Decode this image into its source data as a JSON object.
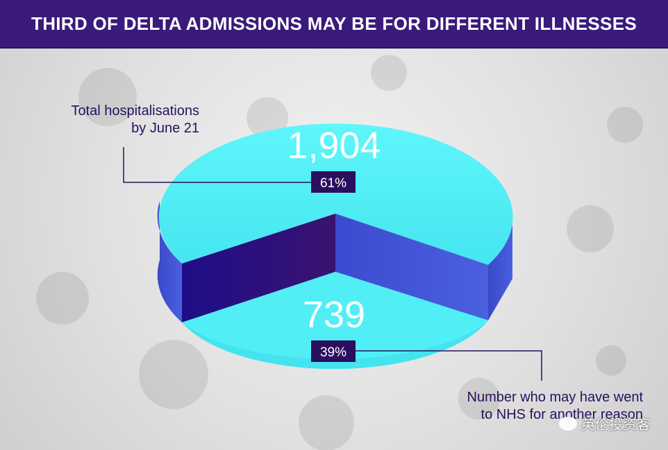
{
  "header": {
    "title": "THIRD OF DELTA ADMISSIONS MAY BE FOR DIFFERENT ILLNESSES"
  },
  "colors": {
    "header_bg": "#3a1a7a",
    "slice_top": "#52f0f7",
    "slice_side_light": "#4255d6",
    "slice_side_dark": "#2a0f7a",
    "badge_bg": "#2a0f5e",
    "label_text": "#2a0f5e"
  },
  "labels": {
    "total_line1": "Total hospitalisations",
    "total_line2": "by June 21",
    "other_line1": "Number who may have went",
    "other_line2": "to NHS for another reason"
  },
  "watermark": {
    "text": "英伦投资客"
  },
  "chart_data": {
    "type": "pie",
    "title": "THIRD OF DELTA ADMISSIONS MAY BE FOR DIFFERENT ILLNESSES",
    "slices": [
      {
        "label": "Total hospitalisations by June 21",
        "value": 1904,
        "value_label": "1,904",
        "percent_label": "61%",
        "percent": 61
      },
      {
        "label": "Number who may have went to NHS for another reason",
        "value": 739,
        "value_label": "739",
        "percent_label": "39%",
        "percent": 39
      }
    ]
  }
}
